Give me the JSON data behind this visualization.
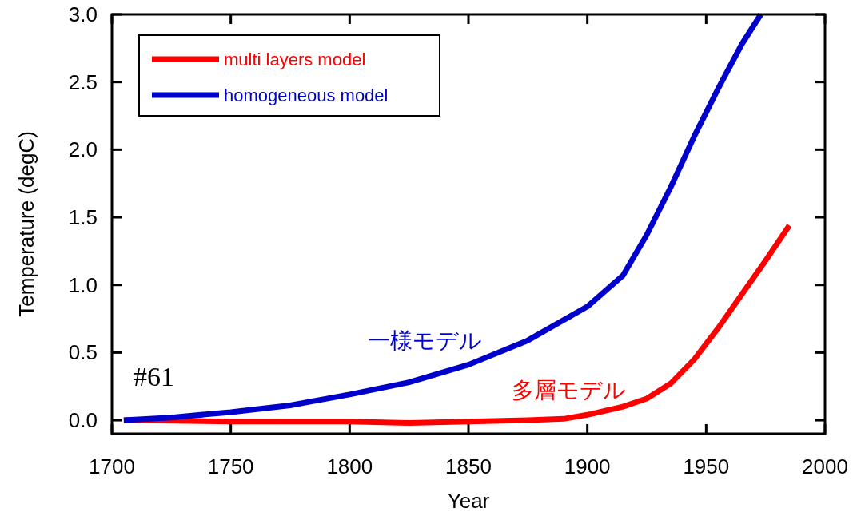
{
  "chart_data": {
    "type": "line",
    "xlabel": "Year",
    "ylabel": "Temperature (degC)",
    "xlim": [
      1700,
      2000
    ],
    "xticks": [
      1700,
      1750,
      1800,
      1850,
      1900,
      1950,
      2000
    ],
    "ylim": [
      -0.1,
      3.0
    ],
    "yticks": [
      {
        "value": 0,
        "label": "0.0"
      },
      0.5,
      {
        "value": 1,
        "label": "1.0"
      },
      1.5,
      {
        "value": 2,
        "label": "2.0"
      },
      2.5,
      {
        "value": 3,
        "label": "3.0"
      }
    ],
    "grid": false,
    "legend": "top left",
    "line_style": "solid",
    "marker": "none",
    "series": [
      {
        "name": "multi layers model",
        "color": "#ff0000",
        "x": [
          1705,
          1750,
          1800,
          1825,
          1850,
          1875,
          1890,
          1900,
          1915,
          1925,
          1935,
          1945,
          1955,
          1965,
          1975,
          1985
        ],
        "values": [
          0,
          -0.01,
          -0.01,
          -0.02,
          -0.01,
          0,
          0.01,
          0.04,
          0.1,
          0.16,
          0.27,
          0.45,
          0.68,
          0.93,
          1.18,
          1.44
        ]
      },
      {
        "name": "homogeneous model",
        "color": "#0000cc",
        "x": [
          1705,
          1725,
          1750,
          1775,
          1800,
          1825,
          1850,
          1875,
          1900,
          1915,
          1925,
          1935,
          1945,
          1955,
          1965,
          1973
        ],
        "values": [
          0,
          0.02,
          0.06,
          0.11,
          0.19,
          0.28,
          0.41,
          0.59,
          0.84,
          1.07,
          1.37,
          1.72,
          2.1,
          2.45,
          2.78,
          3.0
        ]
      }
    ],
    "annotations": [
      "#61",
      "一様モデル",
      "多層モデル"
    ]
  }
}
